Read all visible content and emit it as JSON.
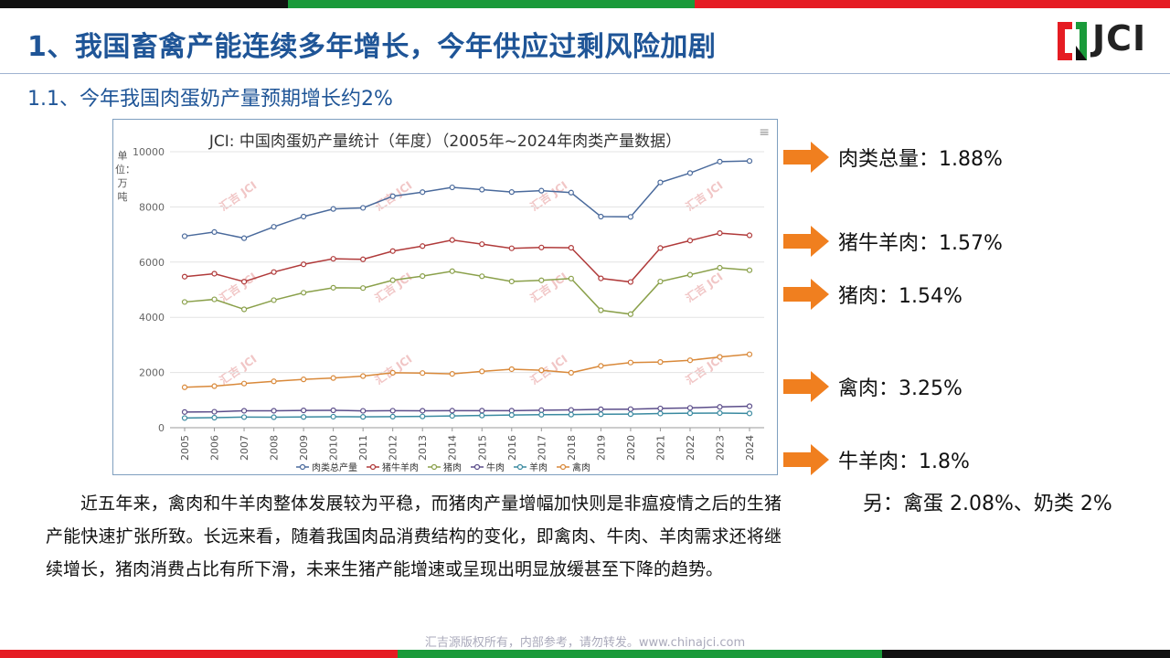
{
  "header": {
    "title": "1、我国畜禽产能连续多年增长，今年供应过剩风险加剧",
    "subtitle": "1.1、今年我国肉蛋奶产量预期增长约2%",
    "logo_text": "JCI",
    "logo_icon": "jci-bracket-logo"
  },
  "colors": {
    "black": "#111111",
    "green": "#1a9a3a",
    "red": "#e51c23",
    "arrow": "#f07f1f",
    "title_blue": "#1f5597"
  },
  "chart_data": {
    "type": "line",
    "title": "JCI: 中国肉蛋奶产量统计（年度）（2005年~2024年肉类产量数据）",
    "ylabel": "单位：万吨",
    "ylim": [
      0,
      10000
    ],
    "yticks": [
      "0",
      "2000",
      "4000",
      "6000",
      "8000",
      "10000"
    ],
    "grid": true,
    "legend_position": "bottom",
    "categories": [
      "2005",
      "2006",
      "2007",
      "2008",
      "2009",
      "2010",
      "2011",
      "2012",
      "2013",
      "2014",
      "2015",
      "2016",
      "2017",
      "2018",
      "2019",
      "2020",
      "2021",
      "2022",
      "2023",
      "2024"
    ],
    "series": [
      {
        "name": "肉类总产量",
        "color": "#4a6a9c",
        "values": [
          6939,
          7089,
          6866,
          7279,
          7650,
          7926,
          7965,
          8387,
          8535,
          8707,
          8625,
          8538,
          8588,
          8517,
          7649,
          7639,
          8887,
          9227,
          9641,
          9663
        ]
      },
      {
        "name": "猪牛羊肉",
        "color": "#b03a3a",
        "values": [
          5473,
          5580,
          5290,
          5640,
          5920,
          6120,
          6100,
          6400,
          6580,
          6800,
          6650,
          6500,
          6530,
          6520,
          5410,
          5280,
          6510,
          6780,
          7050,
          6970
        ]
      },
      {
        "name": "猪肉",
        "color": "#8aa04a",
        "values": [
          4555,
          4650,
          4288,
          4621,
          4891,
          5071,
          5060,
          5343,
          5493,
          5671,
          5487,
          5299,
          5340,
          5404,
          4255,
          4113,
          5296,
          5541,
          5794,
          5706
        ]
      },
      {
        "name": "牛肉",
        "color": "#5b4d8a",
        "values": [
          568,
          577,
          613,
          613,
          626,
          629,
          610,
          615,
          613,
          616,
          617,
          617,
          635,
          644,
          667,
          672,
          698,
          718,
          753,
          779
        ]
      },
      {
        "name": "羊肉",
        "color": "#3a8aa0",
        "values": [
          350,
          363,
          383,
          380,
          389,
          399,
          393,
          401,
          408,
          428,
          441,
          459,
          471,
          475,
          488,
          492,
          514,
          525,
          531,
          518
        ]
      },
      {
        "name": "禽肉",
        "color": "#d9893a",
        "values": [
          1464,
          1506,
          1600,
          1680,
          1750,
          1800,
          1870,
          1990,
          1980,
          1950,
          2040,
          2120,
          2080,
          1990,
          2240,
          2361,
          2380,
          2443,
          2563,
          2660
        ]
      }
    ],
    "watermark": "汇吉 JCI"
  },
  "callouts": [
    {
      "label": "肉类总量：1.88%"
    },
    {
      "label": "猪牛羊肉：1.57%"
    },
    {
      "label": "猪肉：1.54%"
    },
    {
      "label": "禽肉：3.25%"
    },
    {
      "label": "牛羊肉：1.8%"
    }
  ],
  "note": "另：禽蛋  2.08%、奶类 2%",
  "paragraph": "近五年来，禽肉和牛羊肉整体发展较为平稳，而猪肉产量增幅加快则是非瘟疫情之后的生猪产能快速扩张所致。长远来看，随着我国肉品消费结构的变化，即禽肉、牛肉、羊肉需求还将继续增长，猪肉消费占比有所下滑，未来生猪产能增速或呈现出明显放缓甚至下降的趋势。",
  "footer": "汇吉源版权所有，内部参考，请勿转发。www.chinajci.com",
  "menu_icon": "hamburger-menu-icon"
}
